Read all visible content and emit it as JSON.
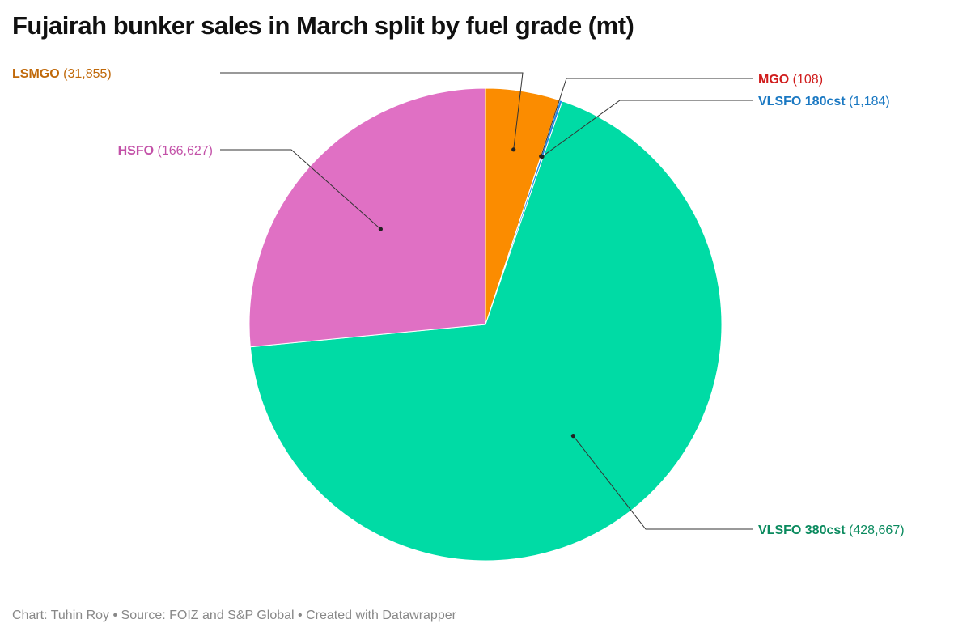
{
  "title": "Fujairah bunker sales in March split by fuel grade (mt)",
  "footer": "Chart: Tuhin Roy • Source: FOIZ and S&P Global • Created with Datawrapper",
  "chart_data": {
    "type": "pie",
    "title": "Fujairah bunker sales in March split by fuel grade (mt)",
    "slices": [
      {
        "name": "LSMGO",
        "value": 31855,
        "value_label": "(31,855)",
        "color": "#fb8c00",
        "label_color": "#c0690a"
      },
      {
        "name": "MGO",
        "value": 108,
        "value_label": "(108)",
        "color": "#e53935",
        "label_color": "#d01c1c"
      },
      {
        "name": "VLSFO 180cst",
        "value": 1184,
        "value_label": "(1,184)",
        "color": "#1e88e5",
        "label_color": "#1a78c2"
      },
      {
        "name": "VLSFO 380cst",
        "value": 428667,
        "value_label": "(428,667)",
        "color": "#00dba5",
        "label_color": "#0a8a5e"
      },
      {
        "name": "HSFO",
        "value": 166627,
        "value_label": "(166,627)",
        "color": "#e070c4",
        "label_color": "#c351a8"
      }
    ],
    "start_angle_deg": 0,
    "direction": "clockwise"
  }
}
